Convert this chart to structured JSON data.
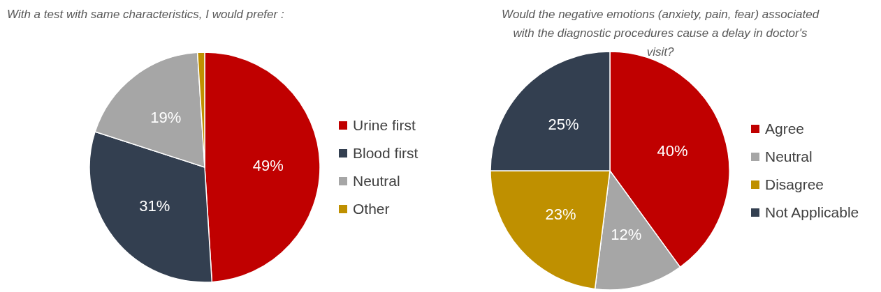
{
  "chart_data": [
    {
      "type": "pie",
      "title": "With a test with same characteristics, I would prefer :",
      "categories": [
        "Urine first",
        "Blood first",
        "Neutral",
        "Other"
      ],
      "values": [
        49,
        31,
        19,
        1
      ],
      "colors": [
        "#c00000",
        "#333f50",
        "#a6a6a6",
        "#bf9000"
      ],
      "value_labels": [
        "49%",
        "31%",
        "19%",
        null
      ],
      "legend": "right"
    },
    {
      "type": "pie",
      "title": "Would the negative emotions (anxiety, pain, fear) associated with the diagnostic procedures cause a delay in doctor's visit?",
      "categories": [
        "Agree",
        "Neutral",
        "Disagree",
        "Not Applicable"
      ],
      "values": [
        40,
        12,
        23,
        25
      ],
      "colors": [
        "#c00000",
        "#a6a6a6",
        "#bf9000",
        "#333f50"
      ],
      "value_labels": [
        "40%",
        "12%",
        "23%",
        "25%"
      ],
      "legend": "right"
    }
  ]
}
